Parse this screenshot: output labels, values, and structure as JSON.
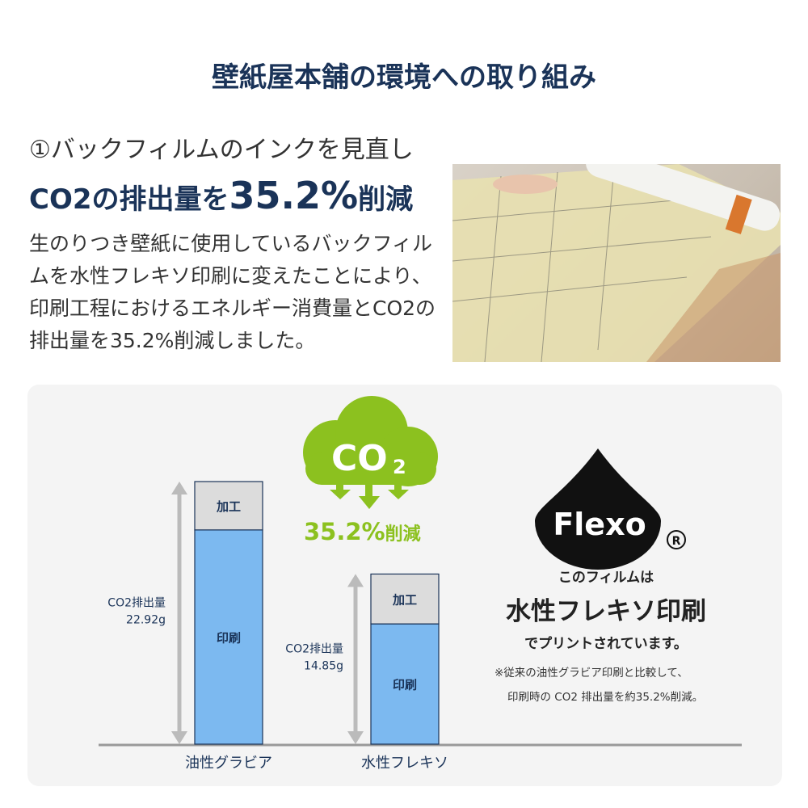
{
  "title": "壁紙屋本舗の環境への取り組み",
  "section": {
    "subtitle": "①バックフィルムのインクを見直し",
    "headline_pre": "CO2の排出量を",
    "headline_big": "35.2%",
    "headline_post": "削減",
    "body": "生のりつき壁紙に使用しているバックフィルムを水性フレキソ印刷に変えたことにより、印刷工程におけるエネルギー消費量とCO2の排出量を35.2%削減しました。"
  },
  "cloud": {
    "label": "CO",
    "sub": "2",
    "reduction": "35.2%",
    "reduction_suffix": "削減"
  },
  "flexo": {
    "logo": "Flexo",
    "registered": "R",
    "line1": "このフィルムは",
    "line2": "水性フレキソ印刷",
    "line3": "でプリントされています。",
    "note1": "※従来の油性グラビア印刷と比較して、",
    "note2": "印刷時の CO2 排出量を約35.2%削減。"
  },
  "colors": {
    "navy": "#1a3358",
    "green": "#8cc11f",
    "print_blue": "#7cb9f0",
    "process_gray": "#dcdcdc"
  },
  "chart_data": {
    "type": "bar",
    "stacked": true,
    "categories": [
      "油性グラビア",
      "水性フレキソ"
    ],
    "series": [
      {
        "name": "印刷",
        "values": [
          18.7,
          10.5
        ]
      },
      {
        "name": "加工",
        "values": [
          4.22,
          4.35
        ]
      }
    ],
    "totals_labels": [
      {
        "label": "CO2排出量",
        "value": "22.92g"
      },
      {
        "label": "CO2排出量",
        "value": "14.85g"
      }
    ],
    "totals": [
      22.92,
      14.85
    ],
    "ylim": [
      0,
      22.92
    ]
  }
}
